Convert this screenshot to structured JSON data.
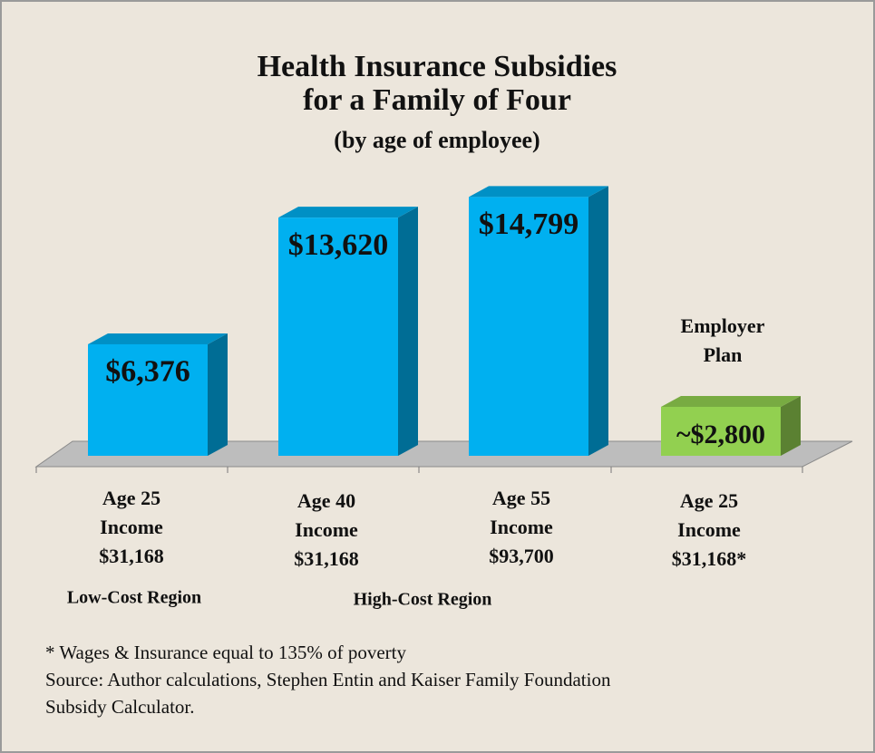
{
  "chart_data": {
    "type": "bar3d",
    "title": [
      "Health Insurance Subsidies",
      "for a Family of Four"
    ],
    "subtitle": "(by age of employee)",
    "categories": [
      [
        "Age 25",
        "Income",
        "$31,168"
      ],
      [
        "Age 40",
        "Income",
        "$31,168"
      ],
      [
        "Age 55",
        "Income",
        "$93,700"
      ],
      [
        "Age 25",
        "Income",
        "$31,168*"
      ]
    ],
    "values": [
      6376,
      13620,
      14799,
      2800
    ],
    "value_labels": [
      "$6,376",
      "$13,620",
      "$14,799",
      "~$2,800"
    ],
    "colors": [
      "#00b0f0",
      "#00b0f0",
      "#00b0f0",
      "#92d050"
    ],
    "regions": [
      "Low-Cost Region",
      "High-Cost Region"
    ],
    "annotation": [
      "Employer",
      "Plan"
    ],
    "footnotes": [
      "* Wages & Insurance equal to 135% of poverty",
      "Source: Author calculations, Stephen Entin and Kaiser Family Foundation",
      "Subsidy Calculator."
    ]
  }
}
